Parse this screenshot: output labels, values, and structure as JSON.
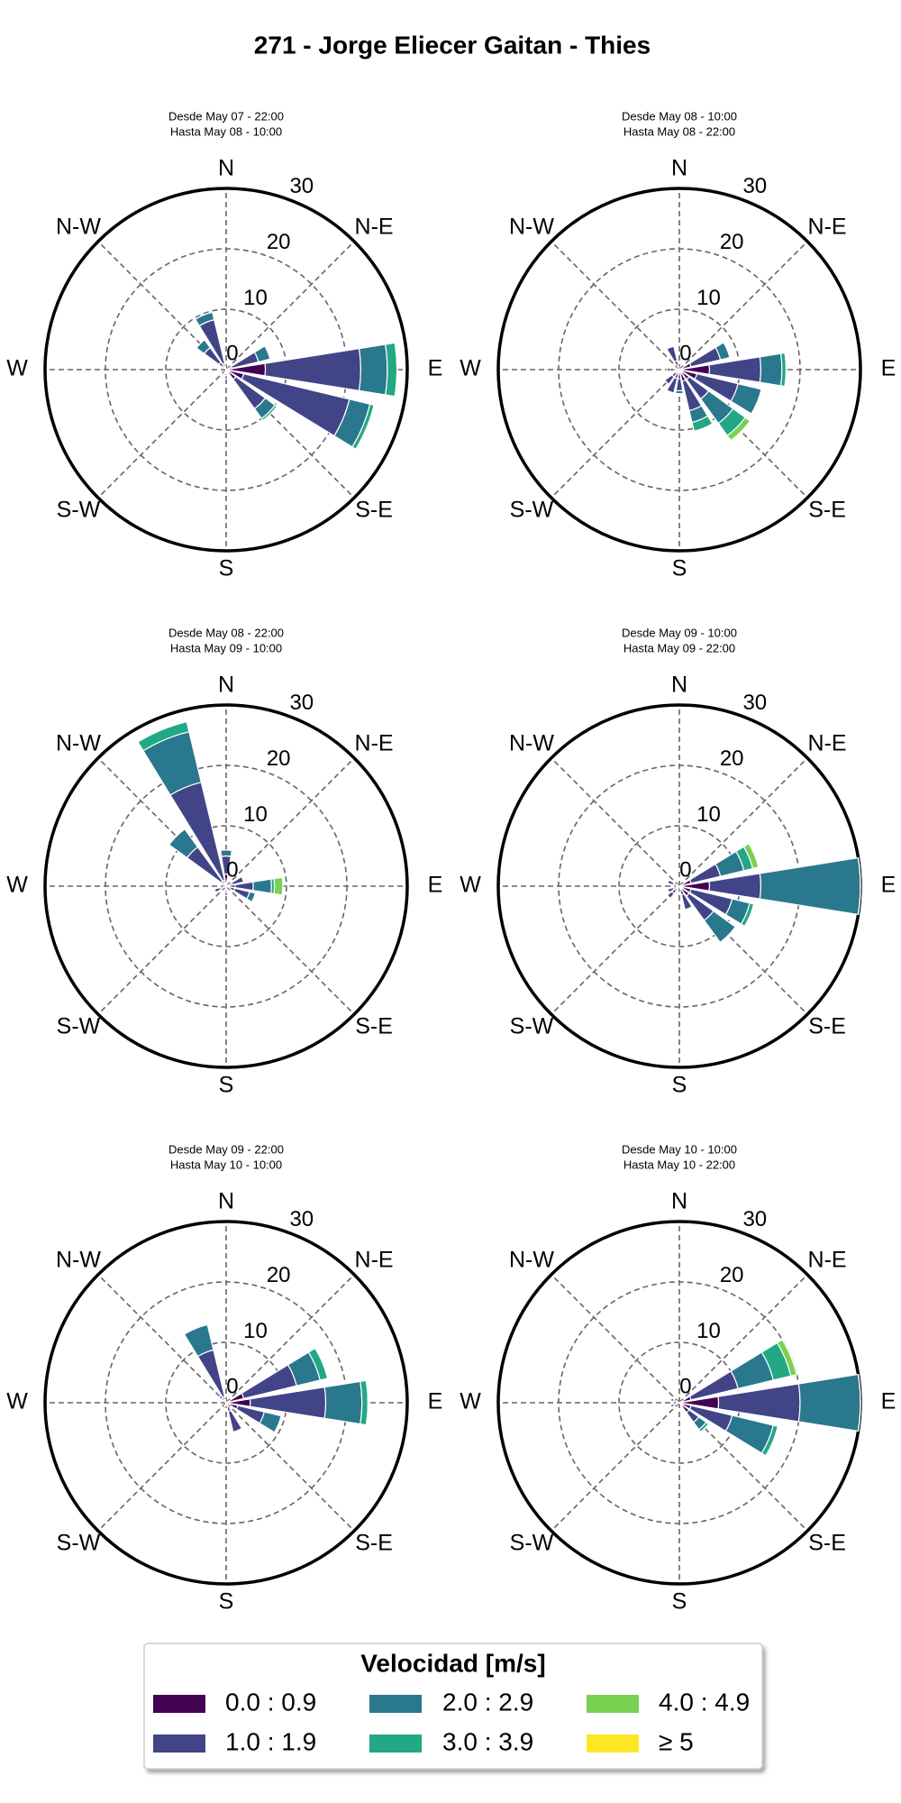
{
  "chart_data": {
    "type": "windrose",
    "title": "271 - Jorge Eliecer Gaitan - Thies",
    "legend_title": "Velocidad [m/s]",
    "bins": [
      {
        "name": "0.0 : 0.9",
        "color": "#440154"
      },
      {
        "name": "1.0 : 1.9",
        "color": "#414487"
      },
      {
        "name": "2.0 : 2.9",
        "color": "#2a788e"
      },
      {
        "name": "3.0 : 3.9",
        "color": "#22a884"
      },
      {
        "name": "4.0 : 4.9",
        "color": "#7ad151"
      },
      {
        "name": "≥ 5",
        "color": "#fde725"
      }
    ],
    "ylim": [
      0,
      30
    ],
    "yticks": [
      0,
      10,
      20,
      30
    ],
    "direction_labels": [
      "N",
      "N-E",
      "E",
      "S-E",
      "S",
      "S-W",
      "W",
      "N-W"
    ],
    "charts": [
      {
        "subtitle": [
          "Desde May 07 - 22:00",
          "Hasta May 08 - 10:00"
        ],
        "directions": [
          90,
          112.5,
          135,
          67.5,
          337.5,
          315,
          180,
          202.5
        ],
        "series": [
          {
            "values": [
              6.5,
              3,
              2,
              1,
              1,
              1.5,
              1,
              0.8
            ]
          },
          {
            "values": [
              15.8,
              18,
              6,
              4.5,
              7.5,
              3,
              0.5,
              0
            ]
          },
          {
            "values": [
              4.4,
              3.5,
              2,
              2,
              1.3,
              1.6,
              0,
              0
            ]
          },
          {
            "values": [
              1.6,
              0.7,
              0.4,
              0,
              0,
              0,
              0,
              0
            ]
          },
          {
            "values": [
              0,
              0,
              0,
              0,
              0,
              0,
              0,
              0
            ]
          },
          {
            "values": [
              0,
              0,
              0,
              0,
              0,
              0,
              0,
              0
            ]
          }
        ]
      },
      {
        "subtitle": [
          "Desde May 08 - 10:00",
          "Hasta May 08 - 22:00"
        ],
        "directions": [
          90,
          112.5,
          135,
          157.5,
          67.5,
          337.5,
          270,
          202.5,
          225,
          180
        ],
        "series": [
          {
            "values": [
              5,
              3,
              2,
              2,
              2,
              1.5,
              1.5,
              1.5,
              1.5,
              1.5
            ]
          },
          {
            "values": [
              8.5,
              7,
              4,
              5,
              5,
              2.5,
              0.5,
              2.5,
              1.5,
              2
            ]
          },
          {
            "values": [
              3.5,
              4,
              5,
              2,
              1.6,
              0,
              0,
              0,
              0,
              0.5
            ]
          },
          {
            "values": [
              0.7,
              0,
              2.5,
              1.5,
              0,
              0,
              0,
              0,
              0,
              0
            ]
          },
          {
            "values": [
              0,
              0,
              1,
              0,
              0,
              0,
              0,
              0,
              0,
              0
            ]
          },
          {
            "values": [
              0,
              0,
              0,
              0,
              0,
              0,
              0,
              0,
              0,
              0
            ]
          }
        ]
      },
      {
        "subtitle": [
          "Desde May 08 - 22:00",
          "Hasta May 09 - 10:00"
        ],
        "directions": [
          337.5,
          315,
          90,
          0,
          112.5,
          67.5,
          247.5,
          180
        ],
        "series": [
          {
            "values": [
              1,
              1,
              1.5,
              2,
              1.5,
              1,
              1,
              1
            ]
          },
          {
            "values": [
              16.7,
              7,
              3,
              3,
              2.5,
              2,
              1,
              0.5
            ]
          },
          {
            "values": [
              8.6,
              3.7,
              3,
              1,
              1,
              0,
              0,
              0
            ]
          },
          {
            "values": [
              1.7,
              0,
              0.5,
              0,
              0,
              0,
              0,
              0
            ]
          },
          {
            "values": [
              0,
              0,
              1.4,
              0,
              0,
              0,
              0,
              0
            ]
          },
          {
            "values": [
              0,
              0,
              0,
              0,
              0,
              0,
              0,
              0
            ]
          }
        ]
      },
      {
        "subtitle": [
          "Desde May 09 - 10:00",
          "Hasta May 09 - 22:00"
        ],
        "directions": [
          90,
          67.5,
          112.5,
          135,
          157.5,
          225,
          292.5,
          247.5
        ],
        "series": [
          {
            "values": [
              5,
              2,
              2,
              2,
              1.5,
              1.5,
              1,
              1
            ]
          },
          {
            "values": [
              8.5,
              5,
              7,
              5,
              2.5,
              1,
              1,
              1
            ]
          },
          {
            "values": [
              16.5,
              4,
              3,
              4.5,
              0,
              0,
              0,
              0
            ]
          },
          {
            "values": [
              0,
              1.5,
              0.7,
              0,
              0,
              0,
              0,
              0
            ]
          },
          {
            "values": [
              0,
              1,
              0,
              0,
              0,
              0,
              0,
              0
            ]
          },
          {
            "values": [
              0,
              0,
              0,
              0,
              0,
              0,
              0,
              0
            ]
          }
        ]
      },
      {
        "subtitle": [
          "Desde May 09 - 22:00",
          "Hasta May 10 - 10:00"
        ],
        "directions": [
          90,
          67.5,
          337.5,
          112.5,
          157.5,
          315,
          202.5
        ],
        "series": [
          {
            "values": [
              4,
              3,
              1,
              2,
              1.5,
              1,
              1
            ]
          },
          {
            "values": [
              12.5,
              9,
              8,
              4.5,
              3.5,
              0.5,
              0
            ]
          },
          {
            "values": [
              6,
              4,
              4.3,
              2.9,
              0,
              0,
              0
            ]
          },
          {
            "values": [
              1,
              1.3,
              0,
              0,
              0,
              0,
              0
            ]
          },
          {
            "values": [
              0,
              0,
              0,
              0,
              0,
              0,
              0
            ]
          },
          {
            "values": [
              0,
              0,
              0,
              0,
              0,
              0,
              0
            ]
          }
        ]
      },
      {
        "subtitle": [
          "Desde May 10 - 10:00",
          "Hasta May 10 - 22:00"
        ],
        "directions": [
          90,
          67.5,
          112.5,
          135,
          292.5,
          247.5
        ],
        "series": [
          {
            "values": [
              6.5,
              2,
              2,
              2,
              1,
              1
            ]
          },
          {
            "values": [
              13.5,
              8,
              7,
              2,
              0.5,
              0.5
            ]
          },
          {
            "values": [
              10,
              6,
              7,
              1.5,
              0,
              0
            ]
          },
          {
            "values": [
              0,
              3,
              0.8,
              0.5,
              0,
              0
            ]
          },
          {
            "values": [
              0,
              1,
              0,
              0,
              0,
              0
            ]
          },
          {
            "values": [
              0,
              0,
              0,
              0,
              0,
              0
            ]
          }
        ]
      }
    ]
  }
}
